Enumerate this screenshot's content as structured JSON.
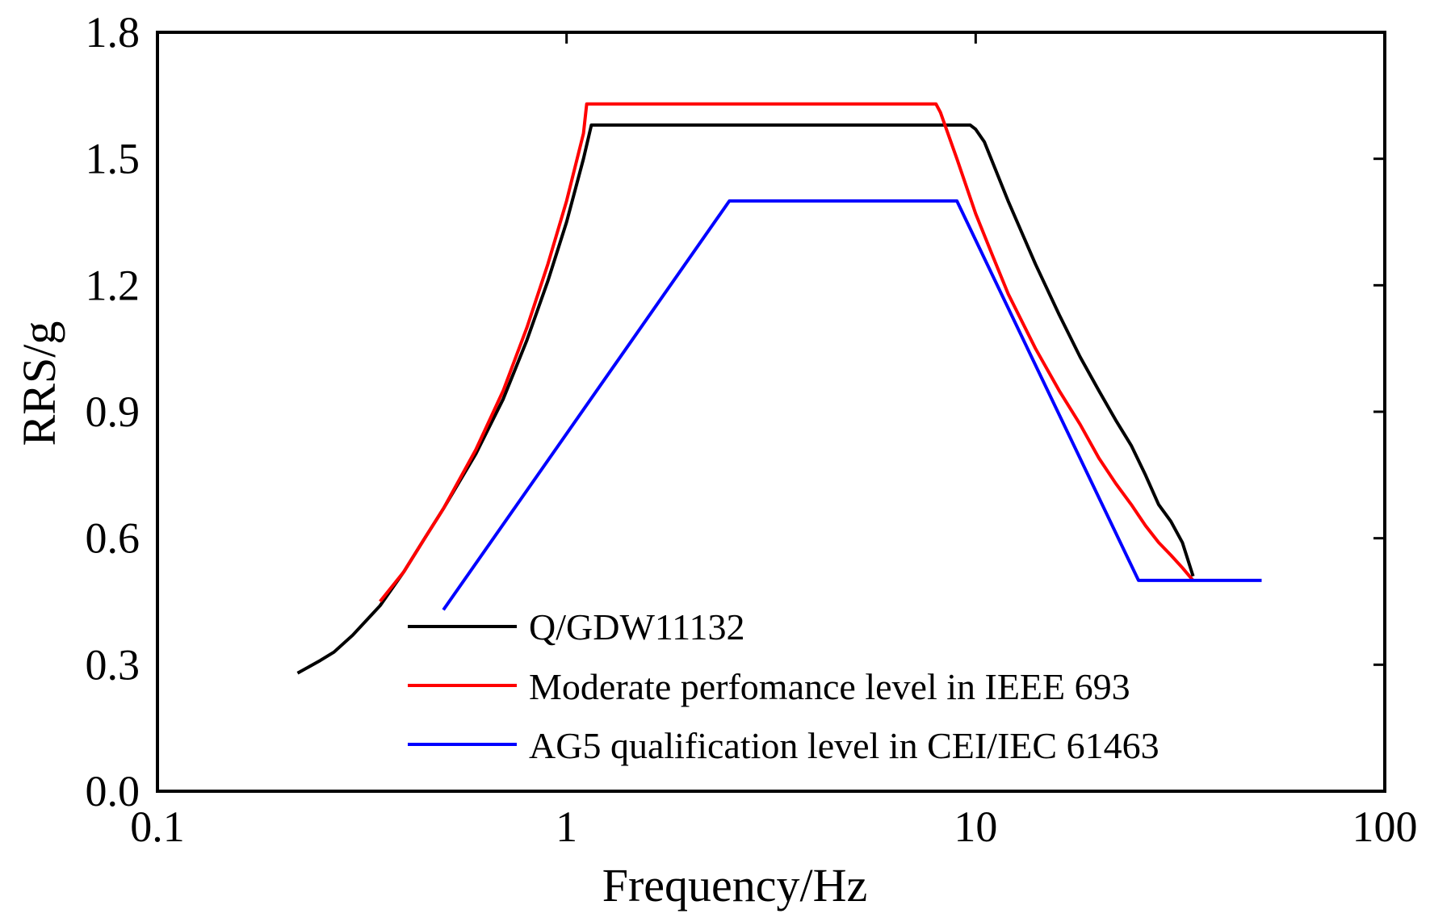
{
  "chart_data": {
    "type": "line",
    "title": "",
    "xlabel": "Frequency/Hz",
    "ylabel": "RRS/g",
    "x_scale": "log",
    "xlim": [
      0.1,
      100
    ],
    "ylim": [
      0.0,
      1.8
    ],
    "grid": false,
    "legend_position": "bottom-center",
    "x_ticks": [
      {
        "value": 0.1,
        "label": "0.1"
      },
      {
        "value": 1,
        "label": "1"
      },
      {
        "value": 10,
        "label": "10"
      },
      {
        "value": 100,
        "label": "100"
      }
    ],
    "y_ticks": [
      {
        "value": 0.0,
        "label": "0.0"
      },
      {
        "value": 0.3,
        "label": "0.3"
      },
      {
        "value": 0.6,
        "label": "0.6"
      },
      {
        "value": 0.9,
        "label": "0.9"
      },
      {
        "value": 1.2,
        "label": "1.2"
      },
      {
        "value": 1.5,
        "label": "1.5"
      },
      {
        "value": 1.8,
        "label": "1.8"
      }
    ],
    "series": [
      {
        "name": "Q/GDW11132",
        "color": "#000000",
        "x": [
          0.22,
          0.25,
          0.27,
          0.3,
          0.35,
          0.4,
          0.45,
          0.5,
          0.6,
          0.7,
          0.8,
          0.9,
          1.0,
          1.1,
          1.15,
          1.5,
          2,
          3,
          5,
          8,
          9.7,
          10,
          10.5,
          12,
          14,
          16,
          18,
          20,
          22,
          24,
          26,
          28,
          30,
          32,
          33,
          34
        ],
        "y": [
          0.28,
          0.31,
          0.33,
          0.37,
          0.44,
          0.52,
          0.6,
          0.67,
          0.8,
          0.93,
          1.07,
          1.21,
          1.35,
          1.5,
          1.58,
          1.58,
          1.58,
          1.58,
          1.58,
          1.58,
          1.58,
          1.57,
          1.54,
          1.4,
          1.25,
          1.13,
          1.03,
          0.95,
          0.88,
          0.82,
          0.75,
          0.68,
          0.64,
          0.59,
          0.55,
          0.51
        ]
      },
      {
        "name": "Moderate perfomance level in IEEE 693",
        "color": "#ff0000",
        "x": [
          0.35,
          0.4,
          0.45,
          0.5,
          0.6,
          0.7,
          0.8,
          0.9,
          1.0,
          1.1,
          1.12,
          2,
          4,
          6,
          8,
          8.2,
          9,
          10,
          11,
          12,
          14,
          16,
          18,
          20,
          22,
          24,
          26,
          28,
          30,
          32,
          34
        ],
        "y": [
          0.45,
          0.52,
          0.6,
          0.67,
          0.81,
          0.95,
          1.1,
          1.25,
          1.4,
          1.56,
          1.63,
          1.63,
          1.63,
          1.63,
          1.63,
          1.61,
          1.5,
          1.37,
          1.27,
          1.18,
          1.05,
          0.95,
          0.87,
          0.79,
          0.73,
          0.68,
          0.63,
          0.59,
          0.56,
          0.53,
          0.5
        ]
      },
      {
        "name": "AG5 qualification level in CEI/IEC 61463",
        "color": "#0000ff",
        "x": [
          0.5,
          2.5,
          9,
          25,
          50
        ],
        "y": [
          0.43,
          1.4,
          1.4,
          0.5,
          0.5
        ]
      }
    ]
  }
}
